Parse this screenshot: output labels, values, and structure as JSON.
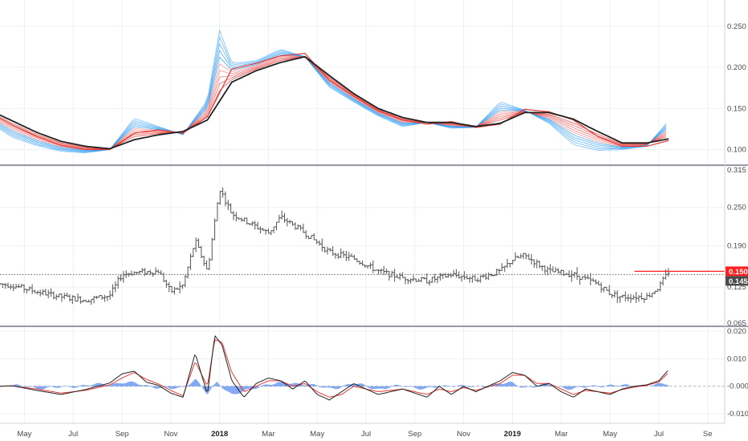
{
  "colors": {
    "grid": "#eef0f3",
    "separator": "#787b86",
    "ribbon_fast": "#2196f3",
    "ribbon_slow": "#e53935",
    "ema_long": "#222222",
    "ohlc": "#555555",
    "last_price": "#ff1e1e",
    "prev_close": "#4a4a4a",
    "macd_line": "#222222",
    "signal_line": "#e53935",
    "histogram": "#5b8def"
  },
  "time_axis": {
    "labels": [
      {
        "text": "May",
        "t": 0.5
      },
      {
        "text": "Jul",
        "t": 2.5
      },
      {
        "text": "Sep",
        "t": 4.5
      },
      {
        "text": "Nov",
        "t": 6.5
      },
      {
        "text": "2018",
        "t": 8.5,
        "bold": true
      },
      {
        "text": "Mar",
        "t": 10.5
      },
      {
        "text": "May",
        "t": 12.5
      },
      {
        "text": "Jul",
        "t": 14.5
      },
      {
        "text": "Sep",
        "t": 16.5
      },
      {
        "text": "Nov",
        "t": 18.5
      },
      {
        "text": "2019",
        "t": 20.5,
        "bold": true
      },
      {
        "text": "Mar",
        "t": 22.5
      },
      {
        "text": "May",
        "t": 24.5
      },
      {
        "text": "Jul",
        "t": 26.5
      },
      {
        "text": "Se",
        "t": 28.5
      }
    ],
    "t_range": [
      -0.5,
      29.2
    ]
  },
  "chart_data": [
    {
      "type": "line",
      "panel": "ribbon",
      "y_ticks": [
        "0.100",
        "0.150",
        "0.200",
        "0.250"
      ],
      "y_tick_values": [
        0.1,
        0.15,
        0.2,
        0.25
      ],
      "ylim": [
        0.082,
        0.282
      ],
      "grid": true,
      "long_ema": {
        "t": [
          -0.5,
          0,
          1,
          2,
          3,
          4,
          5,
          6,
          7,
          8,
          9,
          10,
          11,
          12,
          13,
          14,
          15,
          16,
          17,
          18,
          19,
          20,
          21,
          22,
          23,
          24,
          25,
          26,
          26.9
        ],
        "y": [
          0.142,
          0.135,
          0.121,
          0.11,
          0.104,
          0.101,
          0.112,
          0.118,
          0.122,
          0.136,
          0.182,
          0.196,
          0.206,
          0.213,
          0.19,
          0.168,
          0.15,
          0.139,
          0.133,
          0.133,
          0.128,
          0.132,
          0.145,
          0.145,
          0.137,
          0.122,
          0.108,
          0.108,
          0.113
        ]
      },
      "ribbon_fast": {
        "t": [
          -0.5,
          0,
          1,
          2,
          3,
          4,
          5,
          6,
          7,
          8,
          8.5,
          9,
          10,
          11,
          12,
          13,
          14,
          15,
          16,
          17,
          18,
          19,
          20,
          21,
          22,
          23,
          24,
          25,
          26,
          26.9
        ],
        "y": [
          0.125,
          0.115,
          0.105,
          0.098,
          0.096,
          0.1,
          0.138,
          0.128,
          0.118,
          0.16,
          0.245,
          0.205,
          0.208,
          0.222,
          0.213,
          0.176,
          0.158,
          0.141,
          0.128,
          0.133,
          0.126,
          0.127,
          0.158,
          0.148,
          0.132,
          0.106,
          0.099,
          0.1,
          0.104,
          0.135
        ]
      },
      "ribbon_slow": {
        "t": [
          -0.5,
          0,
          1,
          2,
          3,
          4,
          5,
          6,
          7,
          8,
          9,
          10,
          11,
          12,
          13,
          14,
          15,
          16,
          17,
          18,
          19,
          20,
          21,
          22,
          23,
          24,
          25,
          26,
          26.9
        ],
        "y": [
          0.138,
          0.13,
          0.116,
          0.105,
          0.1,
          0.1,
          0.12,
          0.124,
          0.12,
          0.14,
          0.198,
          0.205,
          0.214,
          0.217,
          0.184,
          0.165,
          0.147,
          0.136,
          0.131,
          0.134,
          0.127,
          0.131,
          0.149,
          0.146,
          0.136,
          0.116,
          0.104,
          0.104,
          0.111
        ]
      }
    },
    {
      "type": "ohlc",
      "panel": "price",
      "y_ticks": [
        "0.065",
        "0.125",
        "0.190",
        "0.250",
        "0.315"
      ],
      "y_tick_values": [
        0.065,
        0.125,
        0.19,
        0.25,
        0.315
      ],
      "ylim": [
        0.065,
        0.315
      ],
      "grid": true,
      "price_t": [
        -0.5,
        0,
        1,
        2,
        3,
        4,
        4.5,
        5,
        6,
        6.5,
        7,
        7.5,
        8,
        8.5,
        9,
        10,
        10.5,
        11,
        12,
        13,
        14,
        15,
        16,
        17,
        18,
        19,
        20,
        20.5,
        21,
        22,
        23,
        24,
        24.5,
        25,
        26,
        26.5,
        26.9
      ],
      "price_y": [
        0.13,
        0.128,
        0.118,
        0.11,
        0.105,
        0.112,
        0.145,
        0.148,
        0.15,
        0.118,
        0.128,
        0.198,
        0.15,
        0.28,
        0.24,
        0.22,
        0.21,
        0.235,
        0.21,
        0.18,
        0.17,
        0.15,
        0.14,
        0.135,
        0.145,
        0.138,
        0.15,
        0.168,
        0.175,
        0.15,
        0.145,
        0.13,
        0.115,
        0.11,
        0.11,
        0.125,
        0.15
      ],
      "last_price": {
        "value": 0.15,
        "label": "0.150",
        "line_from_t": 25.5
      },
      "prev_close": {
        "value": 0.145,
        "label": "0.145"
      }
    },
    {
      "type": "line",
      "panel": "oscillator",
      "y_ticks": [
        "0.020",
        "0.010",
        "-0.000",
        "-0.010"
      ],
      "y_tick_values": [
        0.02,
        0.01,
        0.0,
        -0.01
      ],
      "ylim": [
        -0.0135,
        0.0215
      ],
      "grid": true,
      "macd": {
        "t": [
          -0.5,
          0,
          1,
          2,
          3,
          4,
          4.5,
          5,
          5.5,
          6,
          6.5,
          7,
          7.5,
          8,
          8.3,
          8.6,
          9,
          9.5,
          10,
          10.5,
          11,
          11.5,
          12,
          12.5,
          13,
          13.5,
          14,
          15,
          16,
          17,
          17.5,
          18,
          18.5,
          19,
          20,
          20.5,
          21,
          21.5,
          22,
          22.5,
          23,
          23.5,
          24,
          24.5,
          25,
          25.5,
          26,
          26.5,
          26.9
        ],
        "y": [
          0.0,
          0.0002,
          -0.0015,
          -0.003,
          -0.0012,
          0.0012,
          0.0045,
          0.0055,
          0.0015,
          0.0003,
          -0.0025,
          -0.004,
          0.012,
          -0.003,
          0.0185,
          0.015,
          0.002,
          -0.004,
          0.001,
          0.003,
          0.002,
          -0.001,
          0.002,
          -0.003,
          -0.005,
          -0.002,
          0.001,
          -0.003,
          -0.001,
          -0.004,
          0.0,
          -0.003,
          0.0,
          -0.002,
          0.002,
          0.005,
          0.004,
          0.0,
          0.001,
          -0.002,
          -0.004,
          -0.001,
          -0.002,
          -0.003,
          -0.001,
          0.0,
          0.0005,
          0.002,
          0.006
        ]
      },
      "signal": {
        "t": [
          -0.5,
          0,
          1,
          2,
          3,
          4,
          4.5,
          5,
          5.5,
          6,
          6.5,
          7,
          7.5,
          8,
          8.3,
          8.6,
          9,
          9.5,
          10,
          10.5,
          11,
          11.5,
          12,
          12.5,
          13,
          13.5,
          14,
          15,
          16,
          17,
          17.5,
          18,
          18.5,
          19,
          20,
          20.5,
          21,
          21.5,
          22,
          22.5,
          23,
          23.5,
          24,
          24.5,
          25,
          25.5,
          26,
          26.5,
          26.9
        ],
        "y": [
          0.0,
          0.0001,
          -0.001,
          -0.0025,
          -0.0015,
          0.0005,
          0.003,
          0.005,
          0.0025,
          0.0008,
          -0.0015,
          -0.0035,
          0.009,
          0.0,
          0.017,
          0.016,
          0.005,
          -0.002,
          0.0,
          0.002,
          0.002,
          0.0,
          0.001,
          -0.002,
          -0.004,
          -0.003,
          0.0,
          -0.002,
          -0.001,
          -0.003,
          -0.001,
          -0.002,
          -0.0005,
          -0.0015,
          0.001,
          0.004,
          0.004,
          0.001,
          0.001,
          -0.001,
          -0.003,
          -0.0015,
          -0.002,
          -0.0025,
          -0.0012,
          -0.0003,
          0.0003,
          0.0015,
          0.005
        ]
      },
      "histogram": {
        "t": [
          0,
          1,
          2,
          3,
          4,
          4.5,
          5,
          6,
          6.5,
          7,
          7.5,
          8,
          8.4,
          9,
          9.5,
          10.5,
          12,
          13,
          14,
          15,
          16,
          17,
          18,
          19,
          20,
          20.5,
          21,
          22,
          23,
          24,
          25,
          26,
          26.5,
          26.9
        ],
        "y": [
          0.0003,
          -0.0006,
          -0.0005,
          0.0004,
          0.0007,
          0.0015,
          0.001,
          -0.0004,
          -0.001,
          -0.0005,
          0.0028,
          -0.003,
          0.0015,
          -0.003,
          -0.002,
          0.001,
          0.001,
          -0.001,
          0.001,
          -0.001,
          0.0002,
          -0.001,
          0.0005,
          -0.0005,
          0.001,
          0.001,
          -0.0004,
          0.0005,
          -0.001,
          0.0003,
          0.0002,
          0.0002,
          0.0005,
          0.001
        ]
      }
    }
  ]
}
